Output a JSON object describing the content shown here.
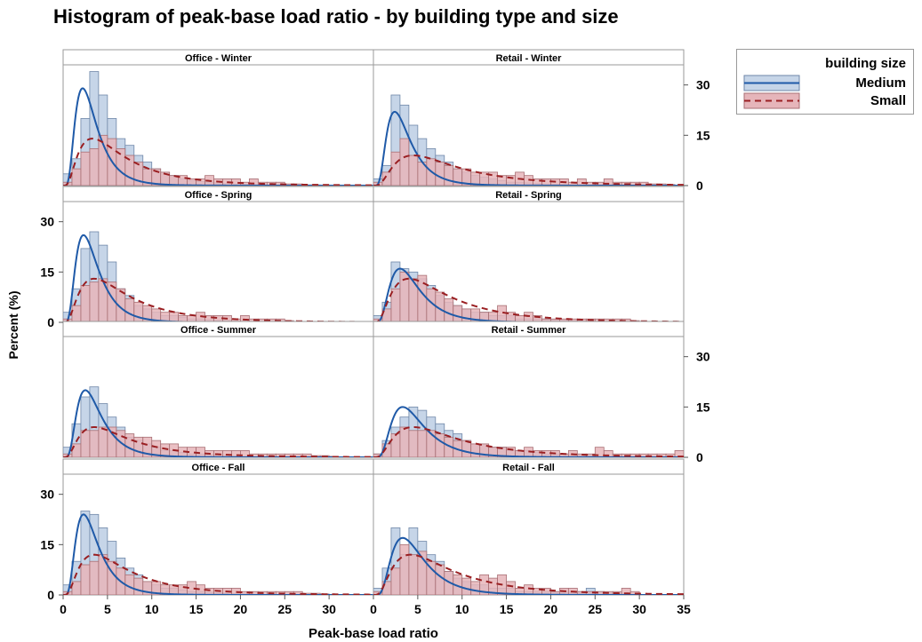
{
  "chart_data": {
    "type": "histogram",
    "title": "Histogram of peak-base load ratio - by building type and size",
    "xlabel": "Peak-base load ratio",
    "ylabel": "Percent (%)",
    "xlim": [
      0,
      35
    ],
    "ylim": [
      0,
      36
    ],
    "x_ticks": [
      "0",
      "5",
      "10",
      "15",
      "20",
      "25",
      "30",
      "0",
      "5",
      "10",
      "15",
      "20",
      "25",
      "30",
      "35"
    ],
    "y_ticks": [
      "0",
      "15",
      "30"
    ],
    "bin_width": 1,
    "legend": {
      "title": "building size",
      "position": "right"
    },
    "series_styles": [
      {
        "name": "Medium",
        "fill": "#c6d5e8",
        "line": "#1f5aa8",
        "dash": "solid"
      },
      {
        "name": "Small",
        "fill": "#e6b5ba",
        "line": "#9a1f22",
        "dash": "dashed"
      }
    ],
    "panels": [
      {
        "label": "Office - Winter",
        "series": [
          {
            "name": "Medium",
            "values": [
              3.5,
              8,
              20,
              34,
              27,
              20,
              14,
              12,
              9,
              7,
              5,
              4,
              3,
              2,
              1.5,
              1.2,
              1,
              0.8,
              0.6,
              0.5,
              0.4,
              0.3,
              0.2,
              0.2,
              0.1
            ],
            "fit_peak": 29,
            "fit_mode": 2.2
          },
          {
            "name": "Small",
            "values": [
              1,
              5,
              10,
              11,
              15,
              14,
              11,
              9,
              7,
              5,
              5,
              4,
              3,
              3,
              2,
              2,
              3,
              2,
              2,
              2,
              1,
              2,
              1,
              1,
              1,
              0.5,
              0.5,
              0.2,
              0.2,
              0.1
            ],
            "fit_peak": 14,
            "fit_mode": 3.3
          }
        ]
      },
      {
        "label": "Retail - Winter",
        "series": [
          {
            "name": "Medium",
            "values": [
              2,
              6,
              27,
              24,
              18,
              14,
              11,
              9,
              7,
              5,
              4,
              3,
              2.5,
              2,
              1.5,
              1,
              1,
              0.8,
              0.6,
              0.5,
              0.4,
              0.3,
              0.2,
              0.2,
              0.1
            ],
            "fit_peak": 22,
            "fit_mode": 2.4
          },
          {
            "name": "Small",
            "values": [
              1,
              4,
              10,
              14,
              9,
              7,
              8,
              7,
              6,
              5,
              5,
              4,
              4,
              4,
              3,
              3,
              4,
              3,
              2,
              2,
              2,
              2,
              1,
              2,
              1,
              1,
              2,
              1,
              1,
              1,
              1,
              0.5,
              0.5,
              0.3
            ],
            "fit_peak": 9,
            "fit_mode": 4.5
          }
        ]
      },
      {
        "label": "Office - Spring",
        "series": [
          {
            "name": "Medium",
            "values": [
              3,
              10,
              22,
              27,
              23,
              18,
              10,
              8,
              5,
              4,
              3,
              2,
              2,
              1.5,
              1,
              1,
              0.8,
              0.6,
              0.5,
              0.4,
              0.3,
              0.2
            ],
            "fit_peak": 26,
            "fit_mode": 2.3
          },
          {
            "name": "Small",
            "values": [
              1,
              5,
              11,
              12,
              13,
              12,
              10,
              7,
              6,
              5,
              4,
              3,
              3,
              2,
              2,
              3,
              2,
              2,
              2,
              1,
              2,
              1,
              1,
              1,
              1,
              0.5,
              0.3,
              0.2
            ],
            "fit_peak": 13,
            "fit_mode": 3.5
          }
        ]
      },
      {
        "label": "Retail - Spring",
        "series": [
          {
            "name": "Medium",
            "values": [
              2,
              6,
              18,
              16,
              15,
              13,
              11,
              8,
              6,
              5,
              4,
              3,
              3,
              2,
              2,
              2,
              1,
              1,
              1,
              1,
              0.8,
              0.6,
              0.5,
              0.4,
              0.3,
              0.2,
              0.2,
              0.1
            ],
            "fit_peak": 16,
            "fit_mode": 3
          },
          {
            "name": "Small",
            "values": [
              1,
              4,
              10,
              15,
              13,
              14,
              10,
              9,
              7,
              5,
              4,
              4,
              3,
              3,
              5,
              3,
              2,
              3,
              2,
              1,
              1,
              1,
              1,
              1,
              1,
              1,
              1,
              1,
              1,
              0.5
            ],
            "fit_peak": 13,
            "fit_mode": 4
          }
        ]
      },
      {
        "label": "Office - Summer",
        "series": [
          {
            "name": "Medium",
            "values": [
              3,
              10,
              18,
              21,
              16,
              12,
              9,
              6,
              5,
              4,
              3,
              2,
              2,
              1.5,
              1,
              1,
              0.8,
              0.6,
              0.5,
              0.4,
              0.3,
              0.2
            ],
            "fit_peak": 20,
            "fit_mode": 2.5
          },
          {
            "name": "Small",
            "values": [
              1,
              4,
              8,
              8,
              9,
              9,
              8,
              7,
              6,
              6,
              5,
              4,
              4,
              3,
              3,
              3,
              2,
              2,
              2,
              2,
              2,
              1,
              1,
              1,
              1,
              1,
              1,
              1,
              0.5,
              0.5,
              0.3
            ],
            "fit_peak": 9,
            "fit_mode": 3.5
          }
        ]
      },
      {
        "label": "Retail - Summer",
        "series": [
          {
            "name": "Medium",
            "values": [
              1,
              5,
              9,
              12,
              15,
              14,
              12,
              10,
              8,
              7,
              5,
              4,
              4,
              3,
              3,
              2,
              2,
              2,
              1.5,
              1,
              1,
              1,
              0.8,
              0.6,
              0.5,
              0.4,
              0.3,
              0.2,
              0.2,
              0.1
            ],
            "fit_peak": 15,
            "fit_mode": 3.3
          },
          {
            "name": "Small",
            "values": [
              1,
              4,
              7,
              9,
              8,
              8,
              8,
              7,
              6,
              5,
              5,
              4,
              4,
              3,
              3,
              3,
              2,
              3,
              2,
              2,
              2,
              1,
              2,
              1,
              1,
              3,
              2,
              1,
              1,
              1,
              1,
              1,
              1,
              1,
              2
            ],
            "fit_peak": 9,
            "fit_mode": 4.5
          }
        ]
      },
      {
        "label": "Office - Fall",
        "series": [
          {
            "name": "Medium",
            "values": [
              3,
              10,
              25,
              24,
              20,
              16,
              11,
              8,
              6,
              4,
              3,
              2,
              2,
              1.5,
              1,
              1,
              0.8,
              0.6,
              0.5,
              0.4,
              0.3,
              0.2
            ],
            "fit_peak": 24,
            "fit_mode": 2.3
          },
          {
            "name": "Small",
            "values": [
              1,
              4,
              9,
              10,
              12,
              10,
              8,
              6,
              5,
              4,
              4,
              3,
              3,
              3,
              4,
              3,
              2,
              2,
              2,
              2,
              1,
              1,
              1,
              1,
              1,
              1,
              1,
              0.5,
              0.5,
              0.3
            ],
            "fit_peak": 12,
            "fit_mode": 3.5
          }
        ]
      },
      {
        "label": "Retail - Fall",
        "series": [
          {
            "name": "Medium",
            "values": [
              2,
              8,
              20,
              12,
              20,
              16,
              12,
              10,
              7,
              5,
              4,
              3,
              3,
              2,
              2,
              2,
              1,
              1,
              1,
              1,
              1,
              1,
              1,
              1,
              2,
              1,
              0.5,
              0.5,
              0.3,
              0.2
            ],
            "fit_peak": 17,
            "fit_mode": 3.3
          },
          {
            "name": "Small",
            "values": [
              1,
              4,
              8,
              15,
              12,
              13,
              10,
              9,
              7,
              6,
              5,
              4,
              6,
              5,
              6,
              4,
              2,
              3,
              2,
              2,
              1,
              2,
              2,
              1,
              1,
              1,
              1,
              1,
              2,
              1
            ],
            "fit_peak": 12,
            "fit_mode": 4.2
          }
        ]
      }
    ]
  }
}
